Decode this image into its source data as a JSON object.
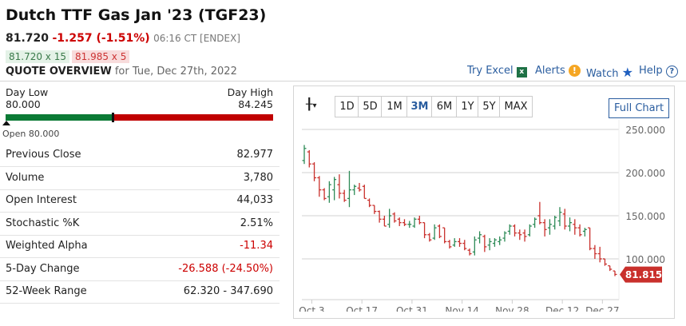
{
  "header": {
    "title": "Dutch TTF Gas Jan '23 (TGF23)",
    "last": "81.720",
    "change": "-1.257 (-1.51%)",
    "time": "06:16 CT [ENDEX]",
    "bid": "81.720 x 15",
    "ask": "81.985 x 5",
    "section": "QUOTE OVERVIEW",
    "date": "for Tue, Dec 27th, 2022"
  },
  "links": {
    "excel": "Try Excel",
    "alerts": "Alerts",
    "watch": "Watch",
    "help": "Help"
  },
  "range": {
    "low_label": "Day Low",
    "low": "80.000",
    "high_label": "Day High",
    "high": "84.245",
    "open": "Open 80.000",
    "position": 0.4
  },
  "stats": [
    {
      "k": "Previous Close",
      "v": "82.977"
    },
    {
      "k": "Volume",
      "v": "3,780"
    },
    {
      "k": "Open Interest",
      "v": "44,033"
    },
    {
      "k": "Stochastic %K",
      "v": "2.51%"
    },
    {
      "k": "Weighted Alpha",
      "v": "-11.34",
      "neg": true
    },
    {
      "k": "5-Day Change",
      "v": "-26.588 (-24.50%)",
      "neg": true
    },
    {
      "k": "52-Week Range",
      "v": "62.320 - 347.690"
    }
  ],
  "chart_controls": {
    "ranges": [
      "1D",
      "5D",
      "1M",
      "3M",
      "6M",
      "1Y",
      "5Y",
      "MAX"
    ],
    "active": "3M",
    "full_chart": "Full Chart"
  },
  "colors": {
    "up": "#2e8b57",
    "down": "#c9302c",
    "accent": "#2a5d9f"
  },
  "chart_data": {
    "type": "ohlc",
    "ylim": [
      65,
      262
    ],
    "yticks": [
      "250.000",
      "200.000",
      "150.000",
      "100.000"
    ],
    "ytick_values": [
      250,
      200,
      150,
      100
    ],
    "xticks": [
      "Oct 3",
      "Oct 17",
      "Oct 31",
      "Nov 14",
      "Nov 28",
      "Dec 12",
      "Dec 27"
    ],
    "xtick_index": [
      5,
      15,
      25,
      35,
      45,
      55,
      63
    ],
    "last_label": "81.815",
    "last_value": 81.815,
    "bars": [
      [
        214,
        232,
        210,
        228
      ],
      [
        224,
        226,
        206,
        210
      ],
      [
        210,
        212,
        190,
        194
      ],
      [
        194,
        196,
        172,
        180
      ],
      [
        180,
        182,
        168,
        170
      ],
      [
        172,
        190,
        165,
        186
      ],
      [
        180,
        195,
        168,
        192
      ],
      [
        186,
        198,
        170,
        176
      ],
      [
        176,
        180,
        166,
        168
      ],
      [
        170,
        202,
        160,
        180
      ],
      [
        180,
        186,
        174,
        184
      ],
      [
        182,
        188,
        178,
        180
      ],
      [
        184,
        186,
        170,
        170
      ],
      [
        168,
        170,
        160,
        162
      ],
      [
        162,
        160,
        152,
        155
      ],
      [
        155,
        156,
        142,
        146
      ],
      [
        146,
        150,
        138,
        138
      ],
      [
        140,
        158,
        136,
        150
      ],
      [
        152,
        154,
        142,
        144
      ],
      [
        146,
        148,
        138,
        142
      ],
      [
        142,
        146,
        138,
        140
      ],
      [
        140,
        144,
        136,
        140
      ],
      [
        138,
        148,
        136,
        146
      ],
      [
        146,
        150,
        140,
        142
      ],
      [
        142,
        140,
        124,
        128
      ],
      [
        128,
        130,
        120,
        122
      ],
      [
        124,
        140,
        122,
        136
      ],
      [
        138,
        140,
        124,
        126
      ],
      [
        136,
        136,
        118,
        120
      ],
      [
        120,
        122,
        112,
        114
      ],
      [
        116,
        124,
        114,
        120
      ],
      [
        120,
        124,
        114,
        118
      ],
      [
        118,
        122,
        110,
        112
      ],
      [
        110,
        112,
        104,
        106
      ],
      [
        108,
        126,
        104,
        122
      ],
      [
        124,
        132,
        118,
        128
      ],
      [
        126,
        128,
        108,
        114
      ],
      [
        116,
        124,
        110,
        120
      ],
      [
        118,
        124,
        114,
        122
      ],
      [
        120,
        126,
        116,
        122
      ],
      [
        124,
        132,
        120,
        130
      ],
      [
        132,
        140,
        128,
        138
      ],
      [
        138,
        140,
        126,
        130
      ],
      [
        130,
        134,
        122,
        128
      ],
      [
        130,
        134,
        120,
        126
      ],
      [
        128,
        140,
        126,
        138
      ],
      [
        140,
        148,
        136,
        146
      ],
      [
        150,
        166,
        140,
        142
      ],
      [
        142,
        146,
        126,
        134
      ],
      [
        136,
        146,
        128,
        140
      ],
      [
        138,
        150,
        134,
        148
      ],
      [
        144,
        160,
        138,
        154
      ],
      [
        152,
        158,
        134,
        138
      ],
      [
        138,
        148,
        132,
        142
      ],
      [
        140,
        146,
        128,
        136
      ],
      [
        136,
        140,
        126,
        128
      ],
      [
        132,
        136,
        126,
        134
      ],
      [
        136,
        136,
        110,
        112
      ],
      [
        112,
        116,
        100,
        106
      ],
      [
        106,
        114,
        96,
        100
      ],
      [
        100,
        98,
        92,
        94
      ],
      [
        92,
        90,
        86,
        88
      ],
      [
        86,
        84,
        80,
        82
      ]
    ]
  }
}
